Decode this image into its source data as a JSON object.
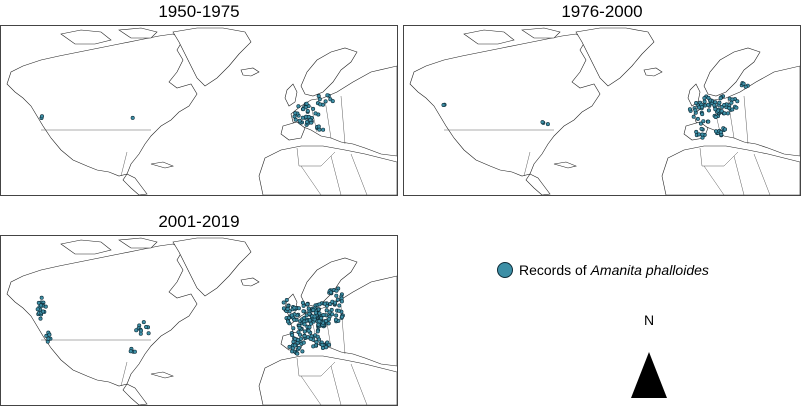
{
  "panels": [
    {
      "title": "1950-1975",
      "density": "low"
    },
    {
      "title": "1976-2000",
      "density": "medium"
    },
    {
      "title": "2001-2019",
      "density": "high"
    }
  ],
  "legend": {
    "label_prefix": "Records of ",
    "species": "Amanita phalloides",
    "marker_color": "#3d8fa6",
    "marker_stroke": "#0d2a36"
  },
  "north_arrow": {
    "label": "N"
  }
}
